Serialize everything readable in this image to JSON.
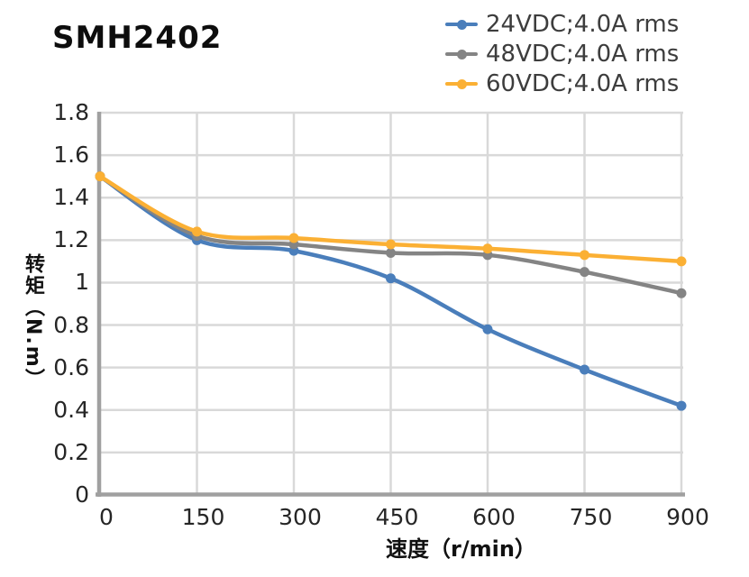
{
  "title": "SMH2402",
  "colors": {
    "background": "#FFFFFF",
    "grid": "#D9D9D9",
    "axis": "#A0A0A0",
    "tick_text": "#262626",
    "legend_text": "#3D3D3D",
    "title_text": "#0D0D0D",
    "series_blue": "#4A7EBB",
    "series_gray": "#848484",
    "series_orange": "#FBB034"
  },
  "axes": {
    "y_tick_labels": [
      "1.8",
      "1.6",
      "1.4",
      "1.2",
      "1",
      "0.8",
      "0.6",
      "0.4",
      "0.2",
      "0"
    ],
    "x_tick_labels": [
      "0",
      "150",
      "300",
      "450",
      "600",
      "750",
      "900"
    ]
  },
  "chart_data": {
    "type": "line",
    "title": "SMH2402",
    "x": [
      0,
      150,
      300,
      450,
      600,
      750,
      900
    ],
    "xlabel": "速度（r/min）",
    "ylabel": "转矩（N.m）",
    "xlim": [
      0,
      900
    ],
    "ylim": [
      0,
      1.8
    ],
    "y_tick_step": 0.2,
    "x_tick_step": 150,
    "grid": true,
    "line_smoothing": true,
    "markers": "circle",
    "legend_position": "top-right",
    "series": [
      {
        "name": "24VDC;4.0A rms",
        "color": "#4A7EBB",
        "values": [
          1.5,
          1.2,
          1.15,
          1.02,
          0.78,
          0.59,
          0.42
        ]
      },
      {
        "name": "48VDC;4.0A rms",
        "color": "#848484",
        "values": [
          1.5,
          1.22,
          1.18,
          1.14,
          1.13,
          1.05,
          0.95
        ]
      },
      {
        "name": "60VDC;4.0A rms",
        "color": "#FBB034",
        "values": [
          1.5,
          1.24,
          1.21,
          1.18,
          1.16,
          1.13,
          1.1
        ]
      }
    ]
  }
}
